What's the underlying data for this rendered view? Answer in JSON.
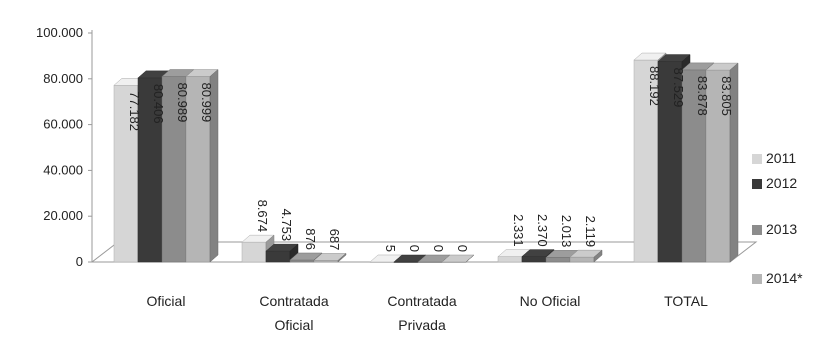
{
  "chart_data": {
    "type": "bar",
    "title": "",
    "xlabel": "",
    "ylabel": "",
    "ylim": [
      0,
      100000
    ],
    "yticks": [
      "0",
      "20.000",
      "40.000",
      "60.000",
      "80.000",
      "100.000"
    ],
    "ytick_values": [
      0,
      20000,
      40000,
      60000,
      80000,
      100000
    ],
    "grid": false,
    "three_d": true,
    "legend_position": "right",
    "categories": [
      [
        "Oficial"
      ],
      [
        "Contratada",
        "Oficial"
      ],
      [
        "Contratada",
        "Privada"
      ],
      [
        "No Oficial"
      ],
      [
        "TOTAL"
      ]
    ],
    "series": [
      {
        "name": "2011",
        "color": "#d6d6d6",
        "values": [
          77182,
          8674,
          5,
          2331,
          88192
        ],
        "labels": [
          "77.182",
          "8.674",
          "5",
          "2.331",
          "88.192"
        ]
      },
      {
        "name": "2012",
        "color": "#3a3a3a",
        "values": [
          80406,
          4753,
          0,
          2370,
          87529
        ],
        "labels": [
          "80.406",
          "4.753",
          "0",
          "2.370",
          "87.529"
        ]
      },
      {
        "name": "2013",
        "color": "#8c8c8c",
        "values": [
          80989,
          876,
          0,
          2013,
          83878
        ],
        "labels": [
          "80.989",
          "876",
          "0",
          "2.013",
          "83.878"
        ]
      },
      {
        "name": "2014*",
        "color": "#b5b5b5",
        "values": [
          80999,
          687,
          0,
          2119,
          83805
        ],
        "labels": [
          "80.999",
          "687",
          "0",
          "2.119",
          "83.805"
        ]
      }
    ]
  }
}
